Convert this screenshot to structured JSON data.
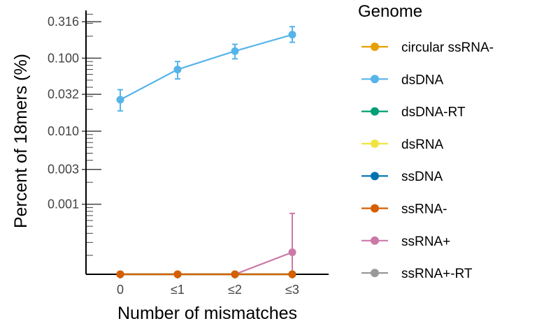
{
  "chart_data": {
    "type": "line",
    "xlabel": "Number of mismatches",
    "ylabel": "Percent of 18mers (%)",
    "y_scale": "log10",
    "categories": [
      "0",
      "≤1",
      "≤2",
      "≤3"
    ],
    "y_ticks": [
      {
        "value": 0.001,
        "label": "0.001"
      },
      {
        "value": 0.003,
        "label": "0.003"
      },
      {
        "value": 0.01,
        "label": "0.010"
      },
      {
        "value": 0.032,
        "label": "0.032"
      },
      {
        "value": 0.1,
        "label": "0.100"
      },
      {
        "value": 0.316,
        "label": "0.316"
      }
    ],
    "ylim": [
      0.00011,
      0.45
    ],
    "legend": {
      "title": "Genome",
      "position": "right"
    },
    "series": [
      {
        "name": "circular ssRNA-",
        "color": "#E69F00",
        "values": [
          0.00011,
          0.00011,
          0.00011,
          0.00011
        ]
      },
      {
        "name": "dsDNA",
        "color": "#56B4E9",
        "values": [
          0.027,
          0.07,
          0.125,
          0.21
        ],
        "err_low": [
          0.019,
          0.052,
          0.098,
          0.165
        ],
        "err_high": [
          0.037,
          0.09,
          0.155,
          0.27
        ]
      },
      {
        "name": "dsDNA-RT",
        "color": "#009E73",
        "values": [
          0.00011,
          0.00011,
          0.00011,
          0.00011
        ]
      },
      {
        "name": "dsRNA",
        "color": "#F0E442",
        "values": [
          0.00011,
          0.00011,
          0.00011,
          0.00011
        ]
      },
      {
        "name": "ssDNA",
        "color": "#0072B2",
        "values": [
          0.00011,
          0.00011,
          0.00011,
          0.00011
        ]
      },
      {
        "name": "ssRNA-",
        "color": "#D55E00",
        "values": [
          0.00011,
          0.00011,
          0.00011,
          0.00011
        ]
      },
      {
        "name": "ssRNA+",
        "color": "#CC79A7",
        "values": [
          0.00011,
          0.00011,
          0.00011,
          0.00022
        ],
        "err_low": [
          null,
          null,
          null,
          0.00011
        ],
        "err_high": [
          null,
          null,
          null,
          0.00075
        ]
      },
      {
        "name": "ssRNA+-RT",
        "color": "#999999",
        "values": [
          0.00011,
          0.00011,
          0.00011,
          0.00011
        ]
      }
    ]
  }
}
